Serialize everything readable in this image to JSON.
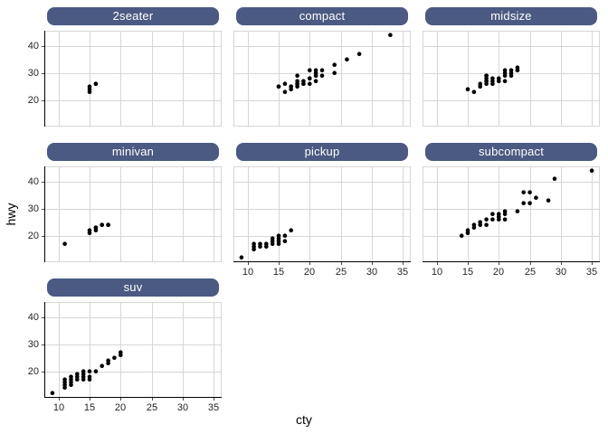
{
  "chart_data": {
    "type": "scatter",
    "title": "",
    "xlabel": "cty",
    "ylabel": "hwy",
    "x_domain": [
      7.7,
      36.3
    ],
    "y_domain": [
      10.23,
      45.57
    ],
    "x_ticks": [
      10,
      15,
      20,
      25,
      30,
      35
    ],
    "y_ticks": [
      20,
      30,
      40
    ],
    "x_gridlines": [
      10,
      15,
      20,
      25,
      30,
      35
    ],
    "y_gridlines": [
      20,
      30,
      40
    ],
    "grid_on": true,
    "legend": "none",
    "point_color": "#000000",
    "grid_color": "#d6d6d6",
    "axis_line_color": "#000000",
    "tick_label_color": "#262626",
    "strip_fill": "#4b5a83",
    "strip_text_color": "#ffffff",
    "facets": [
      {
        "label": "2seater",
        "row": 0,
        "col": 0,
        "axis_left": true,
        "axis_bottom": false,
        "points": [
          [
            15,
            23
          ],
          [
            15,
            24
          ],
          [
            15,
            25
          ],
          [
            16,
            26
          ],
          [
            16,
            26
          ]
        ]
      },
      {
        "label": "compact",
        "row": 0,
        "col": 1,
        "axis_left": false,
        "axis_bottom": false,
        "points": [
          [
            15,
            25
          ],
          [
            15,
            25
          ],
          [
            16,
            23
          ],
          [
            16,
            26
          ],
          [
            17,
            24
          ],
          [
            17,
            25
          ],
          [
            17,
            25
          ],
          [
            18,
            25
          ],
          [
            18,
            26
          ],
          [
            18,
            26
          ],
          [
            18,
            27
          ],
          [
            18,
            29
          ],
          [
            19,
            26
          ],
          [
            19,
            26
          ],
          [
            19,
            27
          ],
          [
            20,
            26
          ],
          [
            20,
            28
          ],
          [
            20,
            28
          ],
          [
            20,
            31
          ],
          [
            21,
            27
          ],
          [
            21,
            29
          ],
          [
            21,
            29
          ],
          [
            21,
            30
          ],
          [
            21,
            31
          ],
          [
            22,
            29
          ],
          [
            22,
            31
          ],
          [
            24,
            30
          ],
          [
            24,
            33
          ],
          [
            26,
            35
          ],
          [
            28,
            37
          ],
          [
            33,
            44
          ]
        ]
      },
      {
        "label": "midsize",
        "row": 0,
        "col": 2,
        "axis_left": false,
        "axis_bottom": false,
        "points": [
          [
            15,
            24
          ],
          [
            16,
            23
          ],
          [
            17,
            25
          ],
          [
            17,
            26
          ],
          [
            18,
            26
          ],
          [
            18,
            27
          ],
          [
            18,
            27
          ],
          [
            18,
            28
          ],
          [
            18,
            29
          ],
          [
            18,
            29
          ],
          [
            19,
            26
          ],
          [
            19,
            27
          ],
          [
            19,
            28
          ],
          [
            20,
            27
          ],
          [
            20,
            28
          ],
          [
            21,
            27
          ],
          [
            21,
            29
          ],
          [
            21,
            30
          ],
          [
            21,
            31
          ],
          [
            22,
            29
          ],
          [
            22,
            30
          ],
          [
            22,
            31
          ],
          [
            23,
            31
          ],
          [
            23,
            31
          ],
          [
            23,
            32
          ]
        ]
      },
      {
        "label": "minivan",
        "row": 1,
        "col": 0,
        "axis_left": true,
        "axis_bottom": false,
        "points": [
          [
            11,
            17
          ],
          [
            15,
            21
          ],
          [
            15,
            22
          ],
          [
            16,
            22
          ],
          [
            16,
            23
          ],
          [
            16,
            23
          ],
          [
            17,
            24
          ],
          [
            17,
            24
          ],
          [
            18,
            24
          ],
          [
            18,
            24
          ]
        ]
      },
      {
        "label": "pickup",
        "row": 1,
        "col": 1,
        "axis_left": false,
        "axis_bottom": true,
        "points": [
          [
            9,
            12
          ],
          [
            11,
            15
          ],
          [
            11,
            16
          ],
          [
            11,
            17
          ],
          [
            12,
            16
          ],
          [
            12,
            17
          ],
          [
            13,
            16
          ],
          [
            13,
            17
          ],
          [
            14,
            17
          ],
          [
            14,
            18
          ],
          [
            14,
            19
          ],
          [
            15,
            17
          ],
          [
            15,
            18
          ],
          [
            15,
            19
          ],
          [
            15,
            20
          ],
          [
            16,
            18
          ],
          [
            16,
            20
          ],
          [
            17,
            22
          ]
        ]
      },
      {
        "label": "subcompact",
        "row": 1,
        "col": 2,
        "axis_left": false,
        "axis_bottom": true,
        "points": [
          [
            14,
            20
          ],
          [
            15,
            21
          ],
          [
            15,
            22
          ],
          [
            16,
            23
          ],
          [
            16,
            24
          ],
          [
            17,
            24
          ],
          [
            17,
            25
          ],
          [
            18,
            24
          ],
          [
            18,
            26
          ],
          [
            19,
            26
          ],
          [
            19,
            28
          ],
          [
            20,
            26
          ],
          [
            20,
            27
          ],
          [
            20,
            28
          ],
          [
            21,
            26
          ],
          [
            21,
            28
          ],
          [
            21,
            29
          ],
          [
            23,
            29
          ],
          [
            24,
            32
          ],
          [
            24,
            36
          ],
          [
            25,
            32
          ],
          [
            25,
            36
          ],
          [
            26,
            34
          ],
          [
            28,
            33
          ],
          [
            29,
            41
          ],
          [
            35,
            44
          ]
        ]
      },
      {
        "label": "suv",
        "row": 2,
        "col": 0,
        "axis_left": true,
        "axis_bottom": true,
        "points": [
          [
            9,
            12
          ],
          [
            11,
            14
          ],
          [
            11,
            15
          ],
          [
            11,
            16
          ],
          [
            11,
            17
          ],
          [
            12,
            15
          ],
          [
            12,
            16
          ],
          [
            12,
            17
          ],
          [
            12,
            18
          ],
          [
            13,
            17
          ],
          [
            13,
            18
          ],
          [
            13,
            19
          ],
          [
            14,
            17
          ],
          [
            14,
            18
          ],
          [
            14,
            19
          ],
          [
            14,
            20
          ],
          [
            15,
            17
          ],
          [
            15,
            18
          ],
          [
            15,
            20
          ],
          [
            16,
            20
          ],
          [
            17,
            22
          ],
          [
            18,
            23
          ],
          [
            18,
            24
          ],
          [
            19,
            25
          ],
          [
            20,
            26
          ],
          [
            20,
            27
          ]
        ]
      }
    ]
  }
}
